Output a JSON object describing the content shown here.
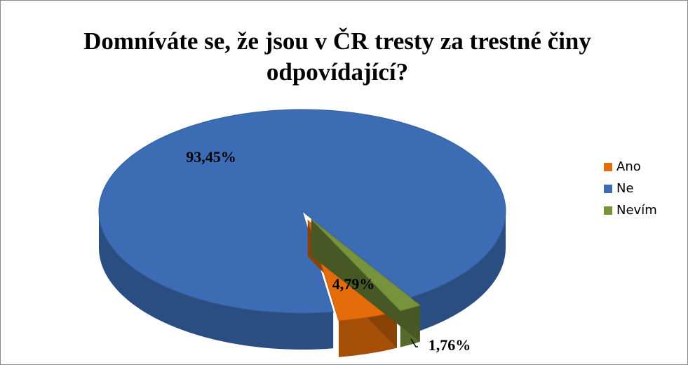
{
  "chart_data": {
    "type": "pie",
    "title": "Domníváte se, že jsou v ČR tresty za trestné činy odpovídající?",
    "categories": [
      "Ano",
      "Ne",
      "Nevím"
    ],
    "values": [
      4.79,
      93.45,
      1.76
    ],
    "value_labels": [
      "4,79%",
      "93,45%",
      "1,76%"
    ],
    "colors": [
      "#e46c0a",
      "#3c6db4",
      "#77933c"
    ],
    "legend": "right"
  }
}
